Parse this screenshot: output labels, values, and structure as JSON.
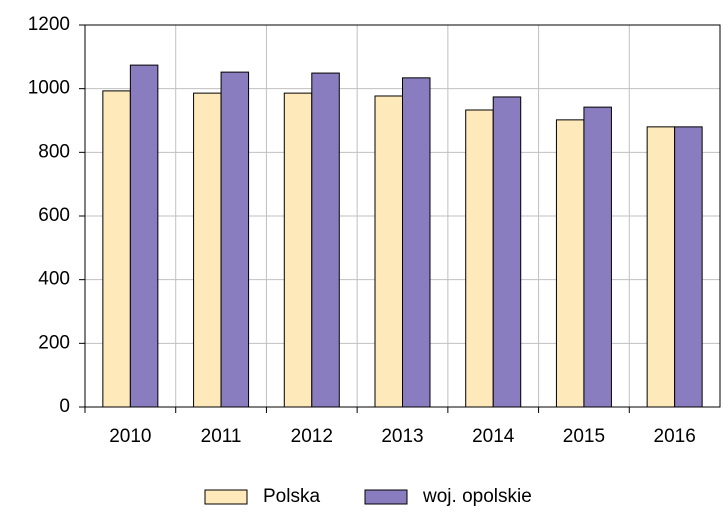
{
  "chart_data": {
    "type": "bar",
    "categories": [
      "2010",
      "2011",
      "2012",
      "2013",
      "2014",
      "2015",
      "2016"
    ],
    "series": [
      {
        "name": "Polska",
        "color": "#fde9b9",
        "values": [
          993,
          986,
          986,
          977,
          933,
          902,
          880
        ]
      },
      {
        "name": "woj. opolskie",
        "color": "#8a7dbf",
        "values": [
          1074,
          1052,
          1049,
          1034,
          974,
          942,
          880
        ]
      }
    ],
    "ylim": [
      0,
      1200
    ],
    "yticks": [
      0,
      200,
      400,
      600,
      800,
      1000,
      1200
    ],
    "grid": true,
    "legend": "bottom"
  }
}
